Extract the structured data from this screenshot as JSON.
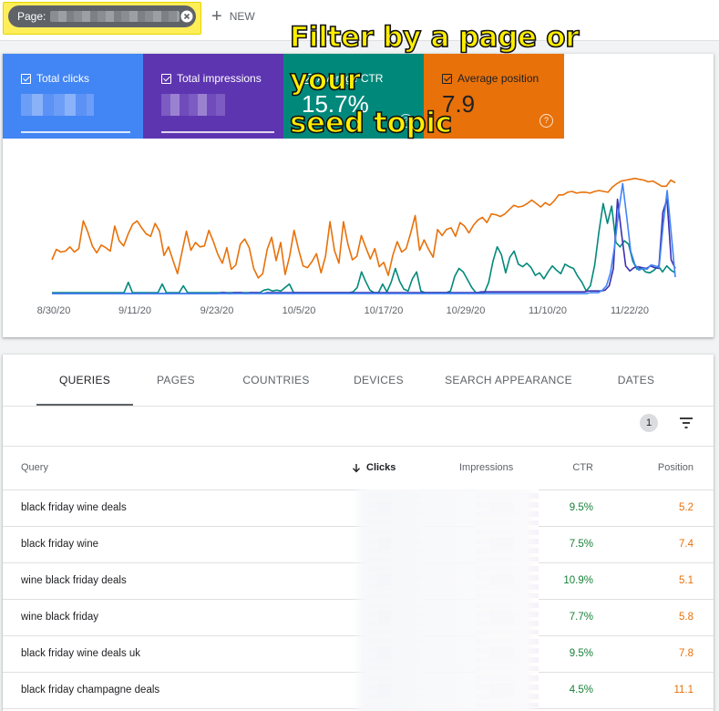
{
  "filter_bar": {
    "chip_label": "Page:",
    "new_label": "NEW"
  },
  "annotation": {
    "text_line1": "Filter by a page or your",
    "text_line2": "seed topic"
  },
  "metrics": [
    {
      "label": "Total clicks",
      "value": "",
      "color": "#4285f4",
      "checked": true
    },
    {
      "label": "Total impressions",
      "value": "",
      "color": "#5e35b1",
      "checked": true
    },
    {
      "label": "Average CTR",
      "value": "15.7%",
      "color": "#00897b",
      "checked": true
    },
    {
      "label": "Average position",
      "value": "7.9",
      "color": "#e8710a",
      "checked": true
    }
  ],
  "chart_data": {
    "type": "line",
    "x_tick_labels": [
      "8/30/20",
      "9/11/20",
      "9/23/20",
      "10/5/20",
      "10/17/20",
      "10/29/20",
      "11/10/20",
      "11/22/20"
    ],
    "series": [
      {
        "name": "Average position",
        "color": "#e8710a",
        "values": [
          40,
          52,
          49,
          50,
          55,
          49,
          53,
          85,
          72,
          56,
          48,
          57,
          54,
          50,
          79,
          62,
          56,
          70,
          81,
          85,
          77,
          70,
          67,
          82,
          73,
          45,
          55,
          39,
          24,
          49,
          73,
          51,
          60,
          55,
          56,
          74,
          61,
          46,
          36,
          54,
          29,
          34,
          58,
          64,
          54,
          30,
          19,
          24,
          52,
          66,
          39,
          60,
          23,
          44,
          74,
          52,
          33,
          31,
          38,
          47,
          25,
          44,
          84,
          51,
          36,
          84,
          58,
          40,
          44,
          68,
          54,
          41,
          53,
          32,
          37,
          22,
          45,
          61,
          49,
          53,
          71,
          91,
          51,
          63,
          52,
          43,
          75,
          68,
          75,
          77,
          67,
          83,
          79,
          71,
          80,
          86,
          89,
          83,
          93,
          92,
          90,
          93,
          98,
          103,
          101,
          102,
          105,
          109,
          105,
          101,
          106,
          103,
          108,
          115,
          115,
          118,
          119,
          117,
          118,
          118,
          117,
          119,
          120,
          119,
          118,
          124,
          128,
          131,
          132,
          133,
          134,
          133,
          132,
          130,
          131,
          128,
          125,
          125,
          132,
          129
        ]
      },
      {
        "name": "Average CTR",
        "color": "#00897b",
        "values": [
          2,
          2,
          2,
          2,
          2,
          2,
          2,
          2,
          2,
          2,
          2,
          2,
          2,
          2,
          2,
          2,
          2,
          2,
          14,
          2,
          2,
          2,
          2,
          2,
          2,
          2,
          12,
          2,
          2,
          2,
          2,
          10,
          2,
          2,
          2,
          2,
          2,
          2,
          2,
          2,
          2,
          2,
          2,
          2,
          2,
          2,
          2,
          2,
          2,
          2,
          5,
          6,
          4,
          5,
          4,
          8,
          12,
          2,
          2,
          2,
          2,
          2,
          2,
          2,
          2,
          2,
          2,
          2,
          2,
          2,
          2,
          3,
          8,
          26,
          15,
          5,
          2,
          2,
          12,
          3,
          14,
          30,
          15,
          6,
          4,
          18,
          26,
          4,
          2,
          2,
          2,
          2,
          2,
          2,
          4,
          21,
          30,
          26,
          17,
          8,
          2,
          2,
          2,
          14,
          38,
          55,
          46,
          25,
          43,
          50,
          35,
          32,
          36,
          31,
          22,
          25,
          18,
          26,
          33,
          28,
          24,
          35,
          32,
          30,
          21,
          14,
          4,
          10,
          34,
          72,
          105,
          82,
          102,
          60,
          55,
          62,
          58,
          38,
          29,
          31,
          26,
          25,
          28,
          33,
          26,
          33,
          28,
          25
        ]
      },
      {
        "name": "Total impressions",
        "color": "#3d2fb0",
        "values": [
          1,
          1,
          1,
          1,
          1,
          1,
          1,
          1,
          1,
          1,
          1,
          1,
          1,
          1,
          1,
          1,
          1,
          1,
          1,
          1,
          1,
          1,
          1,
          1,
          1,
          1,
          1,
          1,
          1,
          1,
          1,
          1,
          1,
          1,
          1,
          1,
          1,
          1,
          1,
          1,
          1,
          2,
          2,
          1,
          2,
          2,
          2,
          1,
          2,
          2,
          2,
          1,
          2,
          2,
          2,
          2,
          2,
          2,
          2,
          2,
          2,
          2,
          2,
          2,
          2,
          2,
          2,
          2,
          2,
          2,
          2,
          2,
          2,
          2,
          2,
          2,
          2,
          2,
          2,
          2,
          2,
          2,
          2,
          2,
          2,
          2,
          2,
          2,
          2,
          2,
          2,
          2,
          2,
          2,
          2,
          2,
          2,
          2,
          2,
          2,
          2,
          2,
          2,
          2,
          3,
          3,
          3,
          3,
          3,
          3,
          3,
          3,
          3,
          3,
          3,
          3,
          3,
          3,
          3,
          3,
          3,
          3,
          3,
          3,
          3,
          3,
          3,
          3,
          3,
          3,
          4,
          4,
          4,
          4,
          5,
          10,
          30,
          110,
          70,
          33,
          27,
          31,
          32,
          31,
          30,
          33,
          31,
          30,
          95,
          110,
          40,
          30
        ]
      },
      {
        "name": "Total clicks",
        "color": "#4285f4",
        "values": [
          1,
          1,
          1,
          1,
          1,
          1,
          1,
          1,
          1,
          1,
          1,
          1,
          1,
          1,
          1,
          1,
          1,
          1,
          1,
          1,
          1,
          1,
          1,
          1,
          1,
          1,
          1,
          1,
          1,
          1,
          1,
          1,
          1,
          1,
          1,
          1,
          1,
          1,
          1,
          1,
          1,
          1,
          1,
          1,
          1,
          1,
          1,
          1,
          1,
          1,
          1,
          1,
          1,
          1,
          1,
          1,
          1,
          1,
          1,
          1,
          1,
          1,
          1,
          1,
          1,
          1,
          1,
          1,
          1,
          1,
          1,
          1,
          1,
          1,
          1,
          1,
          1,
          1,
          1,
          1,
          1,
          1,
          1,
          1,
          1,
          1,
          1,
          1,
          1,
          1,
          1,
          1,
          1,
          1,
          1,
          1,
          1,
          1,
          1,
          1,
          1,
          1,
          1,
          1,
          1,
          1,
          1,
          1,
          1,
          1,
          1,
          1,
          1,
          1,
          1,
          1,
          1,
          1,
          1,
          1,
          1,
          1,
          1,
          1,
          1,
          1,
          1,
          1,
          1,
          1,
          1,
          1,
          1,
          2,
          2,
          2,
          5,
          10,
          25,
          55,
          95,
          128,
          90,
          50,
          35,
          28,
          30,
          29,
          34,
          33,
          31,
          80,
          120,
          70,
          20
        ]
      }
    ],
    "grid": false,
    "legend": "none"
  },
  "tabs": [
    "QUERIES",
    "PAGES",
    "COUNTRIES",
    "DEVICES",
    "SEARCH APPEARANCE",
    "DATES"
  ],
  "active_tab": "QUERIES",
  "filter_count": "1",
  "table": {
    "columns": [
      "Query",
      "Clicks",
      "Impressions",
      "CTR",
      "Position"
    ],
    "sort_column": "Clicks",
    "rows": [
      {
        "query": "black friday wine deals",
        "ctr": "9.5%",
        "position": "5.2"
      },
      {
        "query": "black friday wine",
        "ctr": "7.5%",
        "position": "7.4"
      },
      {
        "query": "wine black friday deals",
        "ctr": "10.9%",
        "position": "5.1"
      },
      {
        "query": "wine black friday",
        "ctr": "7.7%",
        "position": "5.8"
      },
      {
        "query": "black friday wine deals uk",
        "ctr": "9.5%",
        "position": "7.8"
      },
      {
        "query": "black friday champagne deals",
        "ctr": "4.5%",
        "position": "11.1"
      }
    ]
  }
}
